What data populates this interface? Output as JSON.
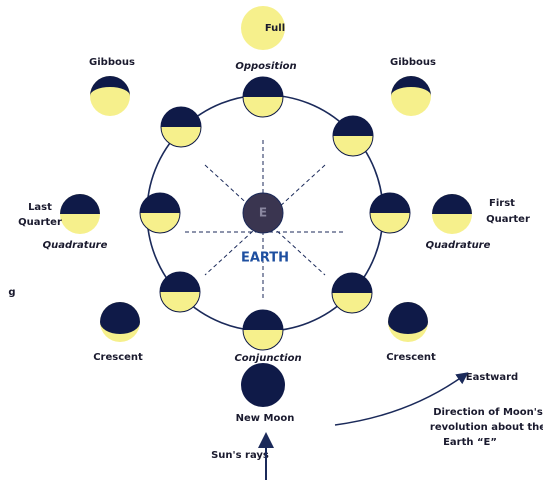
{
  "labels": {
    "full": "Full",
    "gibbous_left": "Gibbous",
    "gibbous_right": "Gibbous",
    "opposition": "Opposition",
    "last_quarter": [
      "Last",
      "Quarter"
    ],
    "first_quarter": [
      "First",
      "Quarter"
    ],
    "quadrature_left": "Quadrature",
    "quadrature_right": "Quadrature",
    "earth_letter": "E",
    "earth": "EARTH",
    "stray": "g",
    "crescent_left": "Crescent",
    "crescent_right": "Crescent",
    "conjunction": "Conjunction",
    "new_moon": "New Moon",
    "eastward": "Eastward",
    "direction": [
      "Direction of Moon's",
      "revolution about the",
      "Earth “E”"
    ],
    "suns_rays": "Sun's rays"
  }
}
